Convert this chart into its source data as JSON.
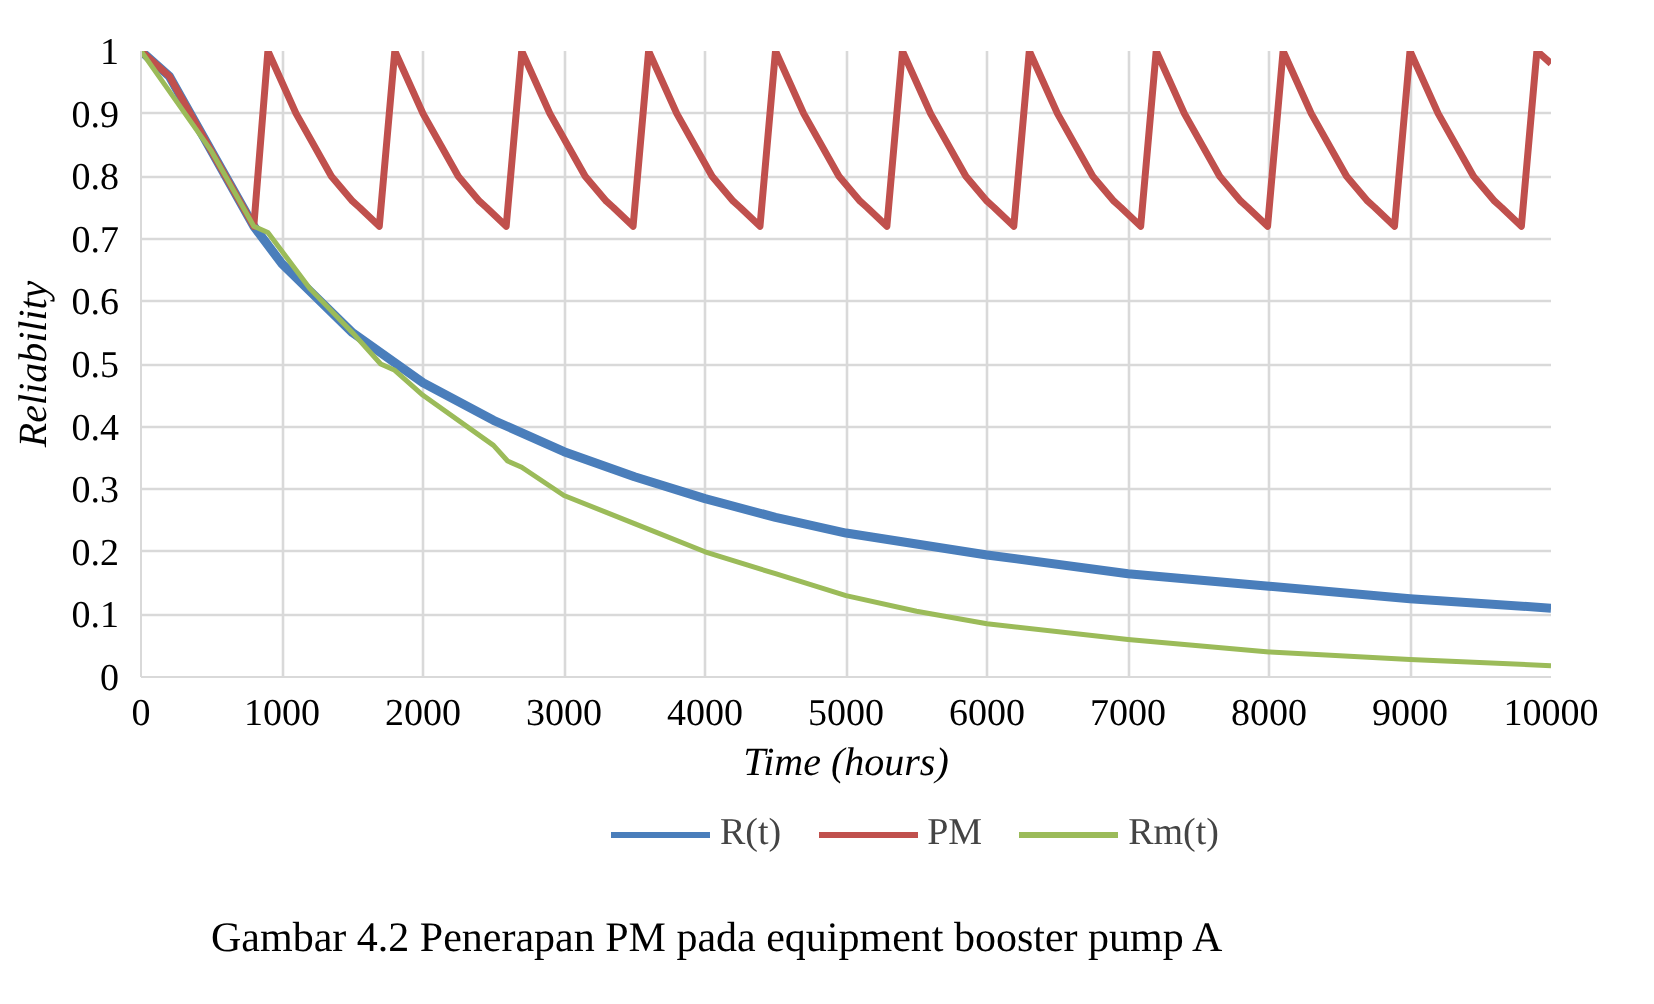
{
  "chart_data": {
    "type": "line",
    "xlabel": "Time (hours)",
    "ylabel": "Reliability",
    "annotations": [
      "Gambar 4.2 Penerapan PM pada equipment booster pump A"
    ],
    "xlim": [
      0,
      10000
    ],
    "ylim": [
      0,
      1
    ],
    "xticks": [
      0,
      1000,
      2000,
      3000,
      4000,
      5000,
      6000,
      7000,
      8000,
      9000,
      10000
    ],
    "yticks": [
      0,
      0.1,
      0.2,
      0.3,
      0.4,
      0.5,
      0.6,
      0.7,
      0.8,
      0.9,
      1
    ],
    "grid": true,
    "legend": "bottom",
    "line_style": "solid",
    "marker": "none",
    "series": [
      {
        "name": "R(t)",
        "color": "#4a7ebb",
        "x": [
          0,
          200,
          500,
          800,
          1000,
          1500,
          2000,
          2500,
          3000,
          3500,
          4000,
          4500,
          5000,
          6000,
          7000,
          8000,
          9000,
          10000
        ],
        "values": [
          1,
          0.96,
          0.84,
          0.72,
          0.66,
          0.55,
          0.47,
          0.41,
          0.36,
          0.32,
          0.285,
          0.255,
          0.23,
          0.195,
          0.165,
          0.145,
          0.125,
          0.11
        ]
      },
      {
        "name": "PM",
        "color": "#c0504d",
        "x": [
          0,
          200,
          500,
          800,
          900,
          1100,
          1350,
          1500,
          1550,
          1690,
          1800,
          2000,
          2250,
          2400,
          2450,
          2590,
          2700,
          2900,
          3150,
          3300,
          3350,
          3490,
          3600,
          3800,
          4050,
          4200,
          4250,
          4390,
          4500,
          4700,
          4950,
          5100,
          5150,
          5290,
          5400,
          5600,
          5850,
          6000,
          6050,
          6190,
          6300,
          6500,
          6750,
          6900,
          6950,
          7090,
          7200,
          7400,
          7650,
          7800,
          7850,
          7990,
          8100,
          8300,
          8550,
          8700,
          8750,
          8890,
          9000,
          9200,
          9450,
          9600,
          9650,
          9790,
          9900,
          10000
        ],
        "values": [
          1,
          0.96,
          0.84,
          0.72,
          1,
          0.9,
          0.8,
          0.76,
          0.75,
          0.72,
          1,
          0.9,
          0.8,
          0.76,
          0.75,
          0.72,
          1,
          0.9,
          0.8,
          0.76,
          0.75,
          0.72,
          1,
          0.9,
          0.8,
          0.76,
          0.75,
          0.72,
          1,
          0.9,
          0.8,
          0.76,
          0.75,
          0.72,
          1,
          0.9,
          0.8,
          0.76,
          0.75,
          0.72,
          1,
          0.9,
          0.8,
          0.76,
          0.75,
          0.72,
          1,
          0.9,
          0.8,
          0.76,
          0.75,
          0.72,
          1,
          0.9,
          0.8,
          0.76,
          0.75,
          0.72,
          1,
          0.9,
          0.8,
          0.76,
          0.75,
          0.72,
          1,
          0.98
        ]
      },
      {
        "name": "Rm(t)",
        "color": "#9bbb59",
        "x": [
          0,
          500,
          800,
          900,
          1200,
          1500,
          1700,
          1800,
          2000,
          2500,
          2600,
          2700,
          3000,
          3500,
          4000,
          4500,
          5000,
          5500,
          6000,
          7000,
          8000,
          9000,
          10000
        ],
        "values": [
          1,
          0.84,
          0.72,
          0.71,
          0.62,
          0.55,
          0.5,
          0.49,
          0.45,
          0.37,
          0.345,
          0.335,
          0.29,
          0.245,
          0.2,
          0.165,
          0.13,
          0.105,
          0.085,
          0.06,
          0.04,
          0.028,
          0.018
        ]
      }
    ]
  }
}
